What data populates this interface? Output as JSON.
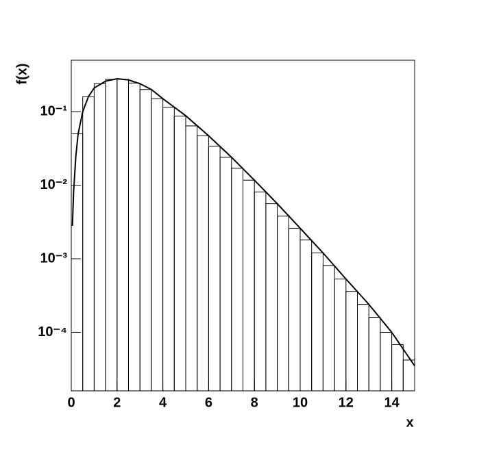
{
  "chart_data": {
    "type": "histogram",
    "x_label": "x",
    "y_label": "f(x)",
    "bins": [
      0,
      0.5,
      1,
      1.5,
      2,
      2.5,
      3,
      3.5,
      4,
      4.5,
      5,
      5.5,
      6,
      6.5,
      7,
      7.5,
      8,
      8.5,
      9,
      9.5,
      10,
      10.5,
      11,
      11.5,
      12,
      12.5,
      13,
      13.5,
      14,
      14.5,
      15
    ],
    "values": [
      0.05,
      0.16,
      0.24,
      0.275,
      0.275,
      0.245,
      0.2,
      0.15,
      0.115,
      0.087,
      0.064,
      0.047,
      0.034,
      0.024,
      0.017,
      0.0117,
      0.0081,
      0.0056,
      0.0038,
      0.0026,
      0.0018,
      0.0012,
      0.00081,
      0.00053,
      0.00036,
      0.00024,
      0.00016,
      0.0001,
      6.8e-05,
      4.2e-05
    ],
    "curve": {
      "x": [
        0.05,
        0.1,
        0.2,
        0.3,
        0.5,
        0.75,
        1,
        1.5,
        2,
        2.5,
        3,
        3.5,
        4,
        5,
        6,
        7,
        8,
        9,
        10,
        11,
        12,
        13,
        14,
        15
      ],
      "values": [
        0.0028,
        0.008,
        0.025,
        0.05,
        0.1,
        0.16,
        0.21,
        0.26,
        0.28,
        0.27,
        0.24,
        0.2,
        0.15,
        0.088,
        0.047,
        0.024,
        0.0117,
        0.0056,
        0.0026,
        0.0012,
        0.00053,
        0.00024,
        0.0001,
        3.5e-05
      ]
    },
    "color": "#000000",
    "log_y": true,
    "xlim": [
      0,
      15
    ],
    "ylim": [
      1.6e-05,
      0.5
    ],
    "xticks": [
      0,
      2,
      4,
      6,
      8,
      10,
      12,
      14
    ],
    "yticks": [
      {
        "value": 0.1,
        "label": "10⁻¹"
      },
      {
        "value": 0.01,
        "label": "10⁻²"
      },
      {
        "value": 0.001,
        "label": "10⁻³"
      },
      {
        "value": 0.0001,
        "label": "10⁻⁴"
      }
    ]
  }
}
